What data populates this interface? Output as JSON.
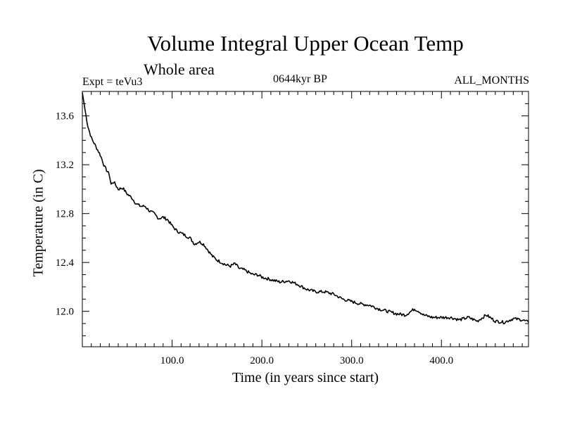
{
  "chart_data": {
    "type": "line",
    "title": "Volume Integral Upper Ocean Temp",
    "subtitle": "Whole area",
    "expt_label": "Expt = teVu3",
    "period_label": "0644kyr BP",
    "months_label": "ALL_MONTHS",
    "xlabel": "Time (in years since start)",
    "ylabel": "Temperature (in C)",
    "xlim": [
      0,
      497
    ],
    "ylim": [
      11.71,
      13.8
    ],
    "xticks": [
      100,
      200,
      300,
      400
    ],
    "xtick_labels": [
      "100.0",
      "200.0",
      "300.0",
      "400.0"
    ],
    "yticks": [
      12.0,
      12.4,
      12.8,
      13.2,
      13.6
    ],
    "ytick_labels": [
      "12.0",
      "12.4",
      "12.8",
      "13.2",
      "13.6"
    ],
    "grid": false,
    "series": [
      {
        "color": "#000000",
        "x": [
          0,
          3,
          6,
          10,
          15,
          20,
          25,
          30,
          32,
          35,
          40,
          45,
          50,
          55,
          60,
          65,
          70,
          75,
          80,
          85,
          90,
          95,
          100,
          105,
          110,
          115,
          120,
          125,
          130,
          135,
          140,
          145,
          150,
          155,
          160,
          165,
          170,
          175,
          180,
          185,
          190,
          195,
          200,
          210,
          220,
          230,
          240,
          250,
          260,
          270,
          280,
          290,
          300,
          310,
          320,
          330,
          340,
          350,
          360,
          370,
          375,
          380,
          390,
          400,
          410,
          420,
          430,
          440,
          450,
          460,
          470,
          480,
          490,
          497
        ],
        "values": [
          13.79,
          13.65,
          13.52,
          13.42,
          13.35,
          13.28,
          13.18,
          13.12,
          13.04,
          13.06,
          13.0,
          13.01,
          12.96,
          12.93,
          12.88,
          12.86,
          12.86,
          12.82,
          12.8,
          12.76,
          12.77,
          12.75,
          12.7,
          12.66,
          12.64,
          12.62,
          12.6,
          12.55,
          12.57,
          12.55,
          12.5,
          12.45,
          12.42,
          12.4,
          12.38,
          12.37,
          12.39,
          12.35,
          12.34,
          12.32,
          12.3,
          12.3,
          12.28,
          12.26,
          12.24,
          12.25,
          12.22,
          12.18,
          12.16,
          12.16,
          12.14,
          12.1,
          12.08,
          12.06,
          12.05,
          12.02,
          12.0,
          11.98,
          11.97,
          12.02,
          12.0,
          11.97,
          11.95,
          11.95,
          11.95,
          11.93,
          11.95,
          11.92,
          11.97,
          11.92,
          11.91,
          11.94,
          11.93,
          11.91
        ]
      }
    ]
  }
}
